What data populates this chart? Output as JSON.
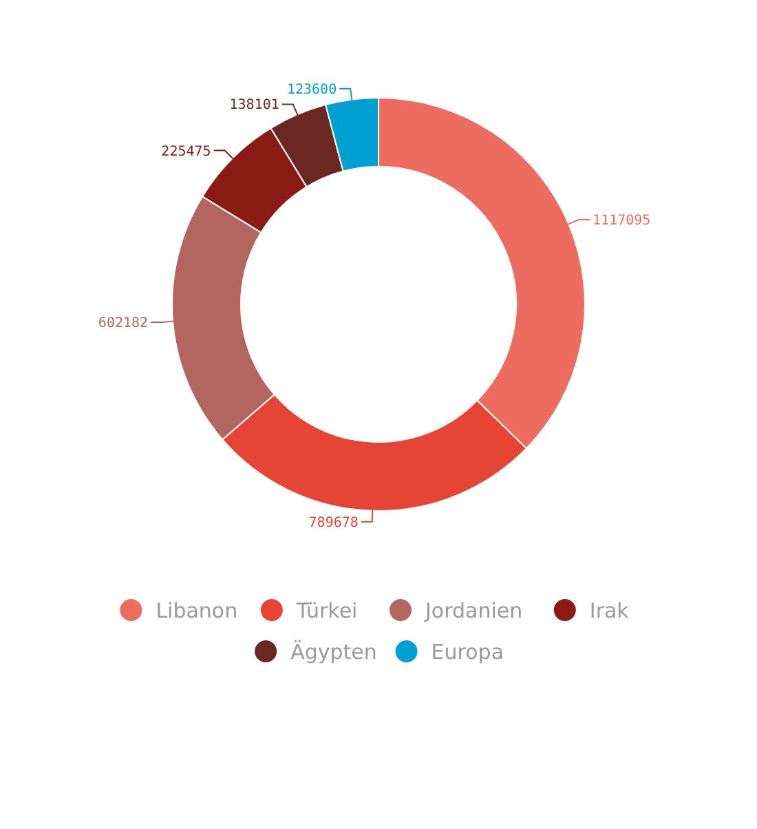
{
  "chart_data": {
    "type": "donut",
    "categories": [
      "Libanon",
      "Türkei",
      "Jordanien",
      "Irak",
      "Ägypten",
      "Europa"
    ],
    "values": [
      1117095,
      789678,
      602182,
      225475,
      138101,
      123600
    ],
    "colors": [
      "#ec6c60",
      "#e64434",
      "#b3665f",
      "#8a1a14",
      "#6b2722",
      "#00a0d2"
    ],
    "data_labels": true,
    "legend": "bottom"
  }
}
